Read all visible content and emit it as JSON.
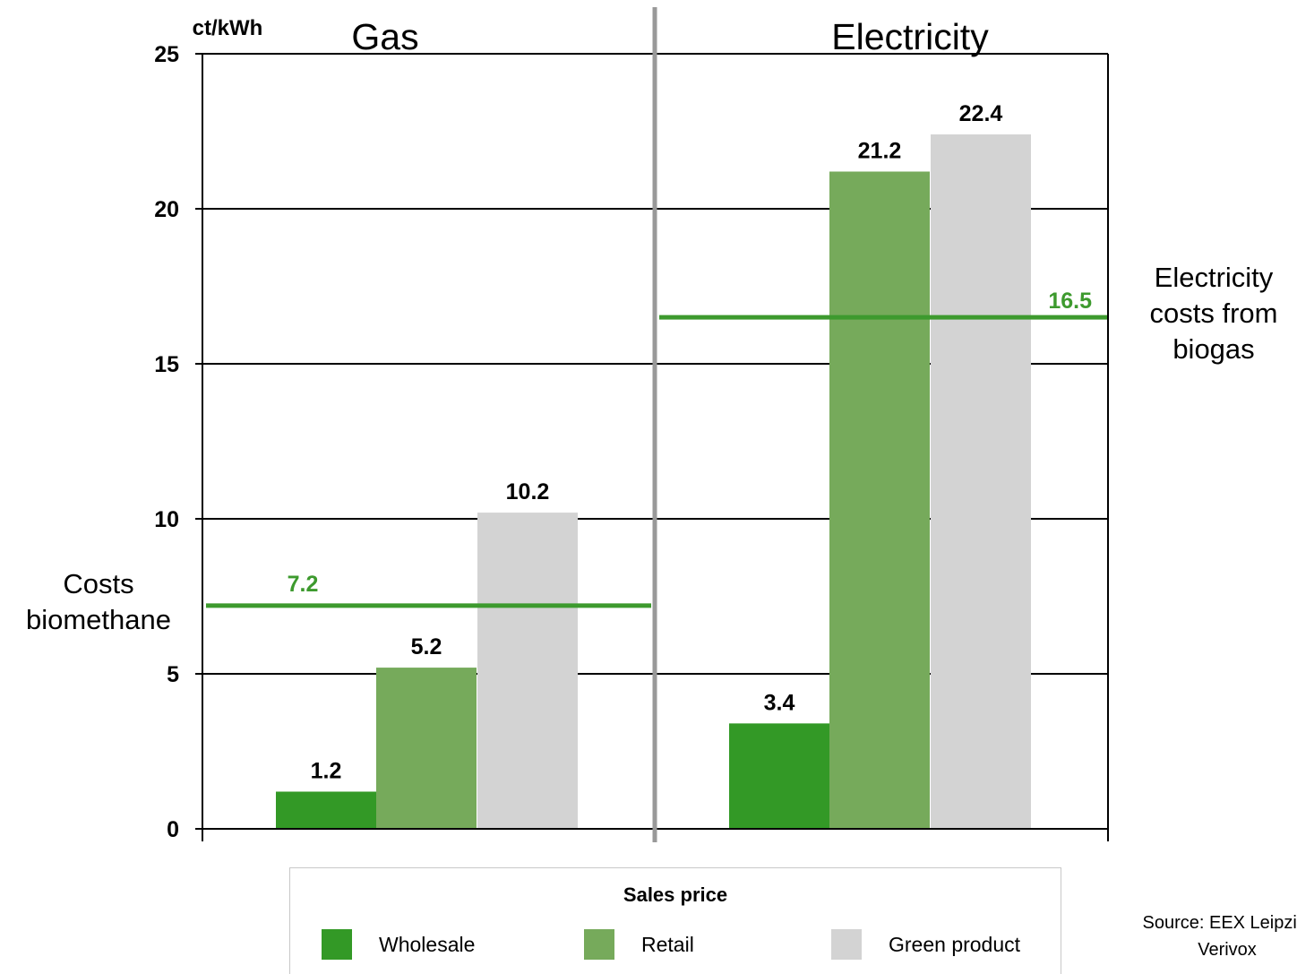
{
  "chart_data": {
    "type": "bar",
    "unit": "ct/kWh",
    "ylim": [
      0,
      25
    ],
    "y_ticks": [
      "0",
      "5",
      "10",
      "15",
      "20",
      "25"
    ],
    "panels": [
      {
        "title": "Gas",
        "values": [
          1.2,
          5.2,
          10.2
        ],
        "value_labels": [
          "1.2",
          "5.2",
          "10.2"
        ],
        "reference_line": {
          "value": 7.2,
          "label": "7.2",
          "annotation": "Costs biomethane"
        }
      },
      {
        "title": "Electricity",
        "values": [
          3.4,
          21.2,
          22.4
        ],
        "value_labels": [
          "3.4",
          "21.2",
          "22.4"
        ],
        "reference_line": {
          "value": 16.5,
          "label": "16.5",
          "annotation": "Electricity costs from biogas"
        }
      }
    ],
    "series": [
      {
        "name": "Wholesale",
        "color": "#339926"
      },
      {
        "name": "Retail",
        "color": "#76aa5b"
      },
      {
        "name": "Green product",
        "color": "#d3d3d3"
      }
    ],
    "reference_line_color": "#3d9a2e",
    "grid": true,
    "legend": {
      "title": "Sales price",
      "position": "bottom"
    }
  },
  "source_note": "Source: EEX Leipzig, Verivox"
}
